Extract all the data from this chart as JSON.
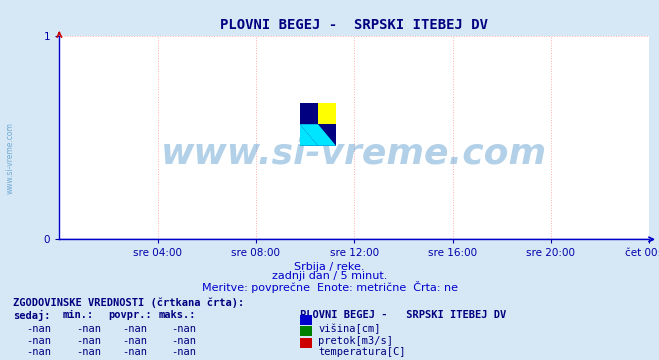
{
  "title": "PLOVNI BEGEJ -  SRPSKI ITEBEJ DV",
  "title_color": "#000080",
  "title_fontsize": 10,
  "bg_color": "#d6e8f5",
  "plot_bg_color": "#ffffff",
  "watermark_text": "www.si-vreme.com",
  "watermark_color": "#5599cc",
  "watermark_alpha": 0.45,
  "x_tick_labels": [
    "sre 04:00",
    "sre 08:00",
    "sre 12:00",
    "sre 16:00",
    "sre 20:00",
    "čet 00:00"
  ],
  "x_tick_positions": [
    0.1667,
    0.3333,
    0.5,
    0.6667,
    0.8333,
    1.0
  ],
  "ylim": [
    0,
    1
  ],
  "xlim": [
    0,
    1
  ],
  "yticks": [
    0,
    1
  ],
  "grid_color": "#ffaaaa",
  "grid_linestyle": ":",
  "grid_linewidth": 0.7,
  "axis_color": "#0000cc",
  "spine_color": "#0000cc",
  "tick_fontsize": 7.5,
  "tick_font_color": "#0000aa",
  "sub_text_line1": "Srbija / reke.",
  "sub_text_line2": "zadnji dan / 5 minut.",
  "sub_text_line3": "Meritve: povprečne  Enote: metrične  Črta: ne",
  "sub_text_color": "#0000cc",
  "sub_text_fontsize": 8,
  "table_title_left": "ZGODOVINSKE VREDNOSTI (črtkana črta):",
  "table_header": [
    "sedaj:",
    "min.:",
    "povpr.:",
    "maks.:"
  ],
  "table_rows": [
    [
      "-nan",
      "-nan",
      "-nan",
      "-nan"
    ],
    [
      "-nan",
      "-nan",
      "-nan",
      "-nan"
    ],
    [
      "-nan",
      "-nan",
      "-nan",
      "-nan"
    ]
  ],
  "table_legend_title": "PLOVNI BEGEJ -   SRPSKI ITEBEJ DV",
  "legend_items": [
    {
      "label": "višina[cm]",
      "color": "#0000cc"
    },
    {
      "label": "pretok[m3/s]",
      "color": "#008000"
    },
    {
      "label": "temperatura[C]",
      "color": "#cc0000"
    }
  ],
  "table_text_color": "#000080",
  "table_fontsize": 7.5,
  "watermark_fontsize": 26,
  "sidebar_text": "www.si-vreme.com",
  "sidebar_color": "#5599cc",
  "sidebar_fontsize": 5.5
}
